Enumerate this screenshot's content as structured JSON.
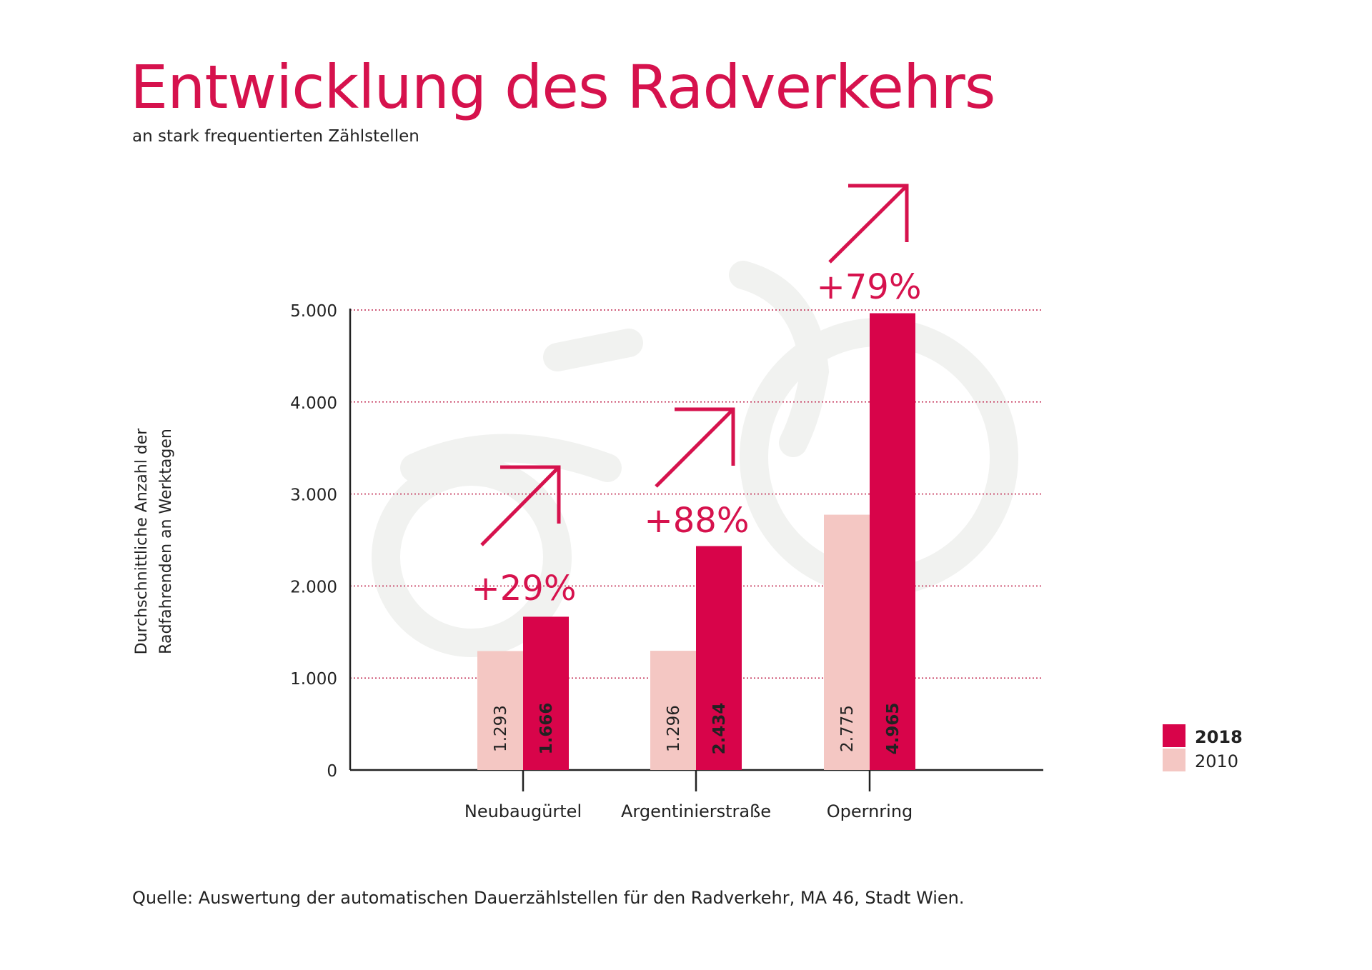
{
  "title": "Entwicklung des Radverkehrs",
  "subtitle": "an stark frequentierten Zählstellen",
  "source": "Quelle: Auswertung der automatischen Dauerzählstellen für den Radverkehr, MA 46, Stadt Wien.",
  "colors": {
    "accent": "#d6124d",
    "series_2018": "#d8044a",
    "series_2010": "#f4c7c3",
    "gridline": "#c0264e",
    "bike_watermark": "#f1f2f0"
  },
  "chart_data": {
    "type": "bar",
    "title": "Entwicklung des Radverkehrs",
    "subtitle": "an stark frequentierten Zählstellen",
    "xlabel": "",
    "ylabel_lines": [
      "Durchschnittliche Anzahl der",
      "Radfahrenden an Werktagen"
    ],
    "ylim": [
      0,
      5000
    ],
    "yticks": [
      0,
      1000,
      2000,
      3000,
      4000,
      5000
    ],
    "ytick_labels": [
      "0",
      "1.000",
      "2.000",
      "3.000",
      "4.000",
      "5.000"
    ],
    "grid": true,
    "legend_position": "right",
    "categories": [
      "Neubaugürtel",
      "Argentinierstraße",
      "Opernring"
    ],
    "series": [
      {
        "name": "2010",
        "values": [
          1293,
          1296,
          2775
        ],
        "labels": [
          "1.293",
          "1.296",
          "2.775"
        ],
        "color": "#f4c7c3"
      },
      {
        "name": "2018",
        "values": [
          1666,
          2434,
          4965
        ],
        "labels": [
          "1.666",
          "2.434",
          "4.965"
        ],
        "color": "#d8044a"
      }
    ],
    "annotations": [
      "+29%",
      "+88%",
      "+79%"
    ],
    "legend": [
      {
        "label": "2018",
        "bold": true,
        "color": "#d8044a"
      },
      {
        "label": "2010",
        "bold": false,
        "color": "#f4c7c3"
      }
    ]
  }
}
